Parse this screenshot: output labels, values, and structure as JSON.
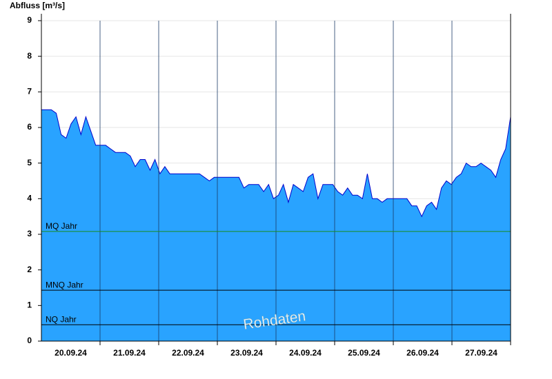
{
  "chart_data": {
    "type": "area",
    "y_label": "Abfluss [m³/s]",
    "day_labels": [
      "20.09.24",
      "21.09.24",
      "22.09.24",
      "23.09.24",
      "24.09.24",
      "25.09.24",
      "26.09.24",
      "27.09.24"
    ],
    "values": [
      6.5,
      6.5,
      6.5,
      6.4,
      5.8,
      5.7,
      6.1,
      6.3,
      5.8,
      6.3,
      5.9,
      5.5,
      5.5,
      5.5,
      5.4,
      5.3,
      5.3,
      5.3,
      5.2,
      4.9,
      5.1,
      5.1,
      4.8,
      5.1,
      4.7,
      4.9,
      4.7,
      4.7,
      4.7,
      4.7,
      4.7,
      4.7,
      4.7,
      4.6,
      4.5,
      4.6,
      4.6,
      4.6,
      4.6,
      4.6,
      4.6,
      4.3,
      4.4,
      4.4,
      4.4,
      4.2,
      4.4,
      4.0,
      4.1,
      4.4,
      3.9,
      4.4,
      4.3,
      4.2,
      4.6,
      4.7,
      4.0,
      4.4,
      4.4,
      4.4,
      4.2,
      4.1,
      4.3,
      4.1,
      4.1,
      4.0,
      4.7,
      4.0,
      4.0,
      3.9,
      4.0,
      4.0,
      4.0,
      4.0,
      4.0,
      3.8,
      3.8,
      3.5,
      3.8,
      3.9,
      3.7,
      4.3,
      4.5,
      4.4,
      4.6,
      4.7,
      5.0,
      4.9,
      4.9,
      5.0,
      4.9,
      4.8,
      4.6,
      5.1,
      5.4,
      6.3
    ],
    "fill_color": "#29a3ff",
    "line_color": "#0000cc",
    "ylim": [
      0,
      9
    ],
    "yticks": [
      0,
      1,
      2,
      3,
      4,
      5,
      6,
      7,
      8,
      9
    ],
    "grid": true,
    "reference_lines": [
      {
        "name": "MQ Jahr",
        "value": 3.08,
        "color": "#1a8c1a"
      },
      {
        "name": "MNQ Jahr",
        "value": 1.43,
        "color": "#000000"
      },
      {
        "name": "NQ Jahr",
        "value": 0.46,
        "color": "#000000"
      }
    ],
    "watermark": "Rohdaten"
  }
}
